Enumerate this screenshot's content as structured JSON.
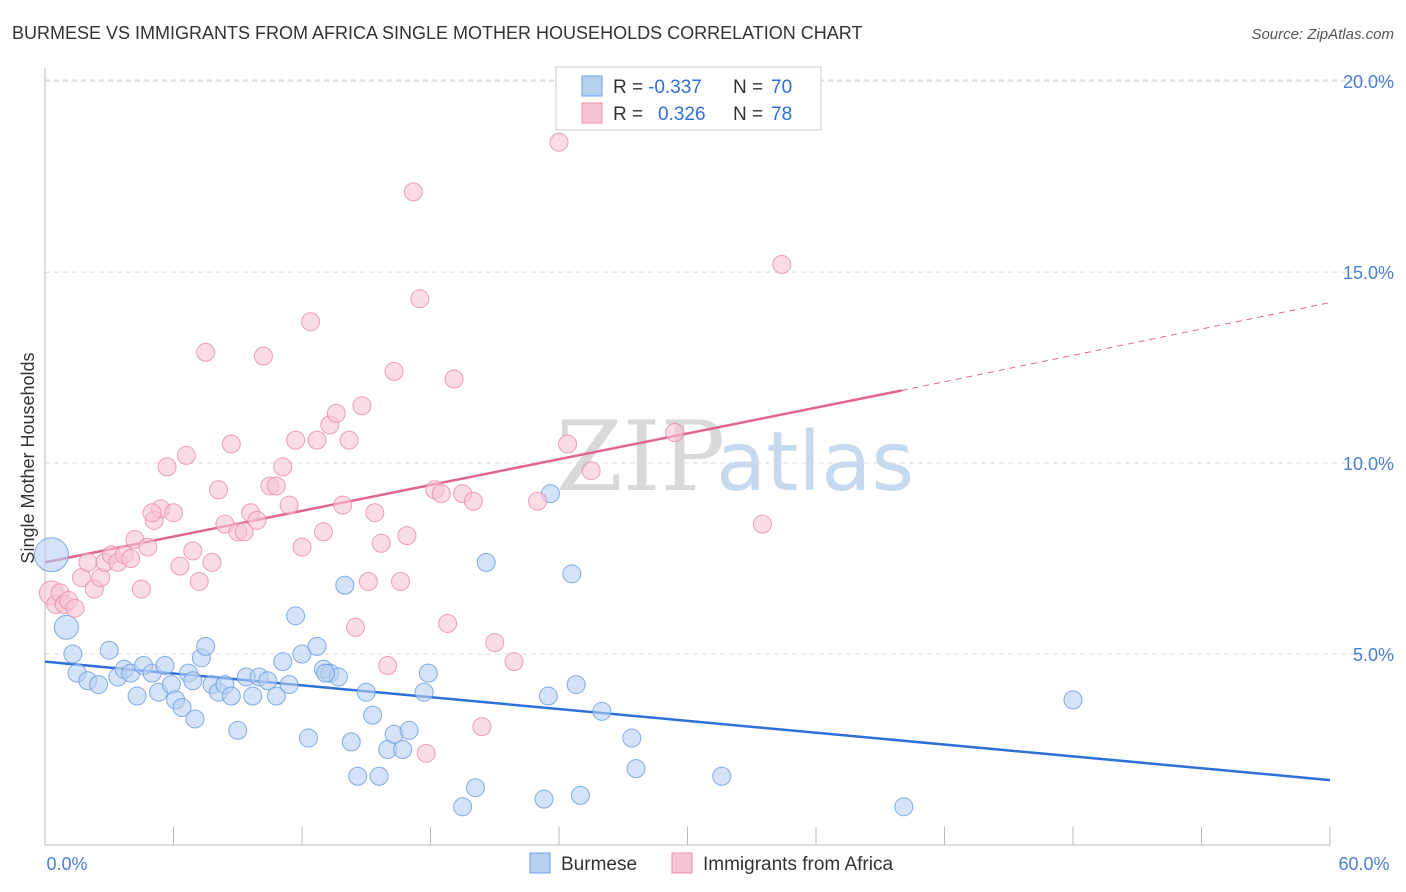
{
  "title": "BURMESE VS IMMIGRANTS FROM AFRICA SINGLE MOTHER HOUSEHOLDS CORRELATION CHART",
  "source": "Source: ZipAtlas.com",
  "watermark": {
    "zip": "ZIP",
    "atlas": "atlas"
  },
  "colors": {
    "burmese": "#6f9fe0",
    "burmese_fill": "#b7d0f2",
    "burmese_line": "#2f6fd6",
    "africa": "#ec8fab",
    "africa_fill": "#f6c5d3",
    "africa_line": "#e0668f",
    "grid": "#dcdcdc",
    "axis_text": "#4a7fd6"
  },
  "legend": {
    "rows": [
      {
        "r_label": "R =",
        "r_value": "-0.337",
        "n_label": "N =",
        "n_value": "70"
      },
      {
        "r_label": "R =",
        "r_value": "0.326",
        "n_label": "N =",
        "n_value": "78"
      }
    ]
  },
  "chart_data": {
    "type": "scatter",
    "title": "BURMESE VS IMMIGRANTS FROM AFRICA SINGLE MOTHER HOUSEHOLDS CORRELATION CHART",
    "xlabel": "",
    "ylabel": "Single Mother Households",
    "xlim": [
      0,
      60
    ],
    "ylim": [
      0,
      20.5
    ],
    "x_tick_labels": [
      "0.0%",
      "60.0%"
    ],
    "y_ticks": [
      5,
      10,
      15,
      20
    ],
    "y_tick_labels": [
      "5.0%",
      "10.0%",
      "15.0%",
      "20.0%"
    ],
    "grid": true,
    "series": [
      {
        "name": "Burmese",
        "r": -0.337,
        "n": 70,
        "trend": {
          "x": [
            0,
            60
          ],
          "y": [
            4.8,
            1.7
          ],
          "dashed_from": null
        },
        "points": [
          [
            0.3,
            7.6
          ],
          [
            1.0,
            5.7
          ],
          [
            1.3,
            5.0
          ],
          [
            1.5,
            4.5
          ],
          [
            2.0,
            4.3
          ],
          [
            2.5,
            4.2
          ],
          [
            3.0,
            5.1
          ],
          [
            3.4,
            4.4
          ],
          [
            3.7,
            4.6
          ],
          [
            4.0,
            4.5
          ],
          [
            4.3,
            3.9
          ],
          [
            4.6,
            4.7
          ],
          [
            5.0,
            4.5
          ],
          [
            5.3,
            4.0
          ],
          [
            5.6,
            4.7
          ],
          [
            5.9,
            4.2
          ],
          [
            6.1,
            3.8
          ],
          [
            6.4,
            3.6
          ],
          [
            6.7,
            4.5
          ],
          [
            7.0,
            3.3
          ],
          [
            7.3,
            4.9
          ],
          [
            7.5,
            5.2
          ],
          [
            7.8,
            4.2
          ],
          [
            8.1,
            4.0
          ],
          [
            8.4,
            4.2
          ],
          [
            8.7,
            3.9
          ],
          [
            9.0,
            3.0
          ],
          [
            9.4,
            4.4
          ],
          [
            9.7,
            3.9
          ],
          [
            10.0,
            4.4
          ],
          [
            10.4,
            4.3
          ],
          [
            10.8,
            3.9
          ],
          [
            11.1,
            4.8
          ],
          [
            11.4,
            4.2
          ],
          [
            11.7,
            6.0
          ],
          [
            12.0,
            5.0
          ],
          [
            12.3,
            2.8
          ],
          [
            12.7,
            5.2
          ],
          [
            13.0,
            4.6
          ],
          [
            13.3,
            4.5
          ],
          [
            13.7,
            4.4
          ],
          [
            14.0,
            6.8
          ],
          [
            14.3,
            2.7
          ],
          [
            14.6,
            1.8
          ],
          [
            15.0,
            4.0
          ],
          [
            15.3,
            3.4
          ],
          [
            15.6,
            1.8
          ],
          [
            16.0,
            2.5
          ],
          [
            16.3,
            2.9
          ],
          [
            16.7,
            2.5
          ],
          [
            17.0,
            3.0
          ],
          [
            17.7,
            4.0
          ],
          [
            17.9,
            4.5
          ],
          [
            19.5,
            1.0
          ],
          [
            20.1,
            1.5
          ],
          [
            20.6,
            7.4
          ],
          [
            23.3,
            1.2
          ],
          [
            23.5,
            3.9
          ],
          [
            23.6,
            9.2
          ],
          [
            24.6,
            7.1
          ],
          [
            24.8,
            4.2
          ],
          [
            26.0,
            3.5
          ],
          [
            27.4,
            2.8
          ],
          [
            27.6,
            2.0
          ],
          [
            31.6,
            1.8
          ],
          [
            40.1,
            1.0
          ],
          [
            48.0,
            3.8
          ],
          [
            25.0,
            1.3
          ],
          [
            13.1,
            4.5
          ],
          [
            6.9,
            4.3
          ]
        ]
      },
      {
        "name": "Immigrants from Africa",
        "r": 0.326,
        "n": 78,
        "trend": {
          "x": [
            0,
            40
          ],
          "y": [
            7.4,
            11.9
          ],
          "dashed_from": 40,
          "dashed_to": [
            60,
            14.2
          ]
        },
        "points": [
          [
            0.3,
            6.6
          ],
          [
            0.5,
            6.3
          ],
          [
            0.7,
            6.6
          ],
          [
            0.9,
            6.3
          ],
          [
            1.1,
            6.4
          ],
          [
            1.4,
            6.2
          ],
          [
            1.7,
            7.0
          ],
          [
            2.0,
            7.4
          ],
          [
            2.3,
            6.7
          ],
          [
            2.6,
            7.0
          ],
          [
            2.8,
            7.4
          ],
          [
            3.1,
            7.6
          ],
          [
            3.4,
            7.4
          ],
          [
            3.7,
            7.6
          ],
          [
            4.0,
            7.5
          ],
          [
            4.2,
            8.0
          ],
          [
            4.5,
            6.7
          ],
          [
            4.8,
            7.8
          ],
          [
            5.1,
            8.5
          ],
          [
            5.4,
            8.8
          ],
          [
            5.7,
            9.9
          ],
          [
            6.0,
            8.7
          ],
          [
            6.3,
            7.3
          ],
          [
            6.6,
            10.2
          ],
          [
            6.9,
            7.7
          ],
          [
            7.2,
            6.9
          ],
          [
            7.5,
            12.9
          ],
          [
            7.8,
            7.4
          ],
          [
            8.1,
            9.3
          ],
          [
            8.4,
            8.4
          ],
          [
            8.7,
            10.5
          ],
          [
            9.0,
            8.2
          ],
          [
            9.3,
            8.2
          ],
          [
            9.6,
            8.7
          ],
          [
            9.9,
            8.5
          ],
          [
            10.2,
            12.8
          ],
          [
            10.5,
            9.4
          ],
          [
            10.8,
            9.4
          ],
          [
            11.1,
            9.9
          ],
          [
            11.4,
            8.9
          ],
          [
            11.7,
            10.6
          ],
          [
            12.0,
            7.8
          ],
          [
            12.4,
            13.7
          ],
          [
            12.7,
            10.6
          ],
          [
            13.0,
            8.2
          ],
          [
            13.3,
            11.0
          ],
          [
            13.6,
            11.3
          ],
          [
            13.9,
            8.9
          ],
          [
            14.2,
            10.6
          ],
          [
            14.5,
            5.7
          ],
          [
            14.8,
            11.5
          ],
          [
            15.1,
            6.9
          ],
          [
            15.4,
            8.7
          ],
          [
            15.7,
            7.9
          ],
          [
            16.0,
            4.7
          ],
          [
            16.3,
            12.4
          ],
          [
            16.6,
            6.9
          ],
          [
            16.9,
            8.1
          ],
          [
            17.2,
            17.1
          ],
          [
            17.5,
            14.3
          ],
          [
            17.8,
            2.4
          ],
          [
            18.2,
            9.3
          ],
          [
            18.5,
            9.2
          ],
          [
            18.8,
            5.8
          ],
          [
            19.1,
            12.2
          ],
          [
            19.5,
            9.2
          ],
          [
            20.0,
            9.0
          ],
          [
            20.4,
            3.1
          ],
          [
            21.0,
            5.3
          ],
          [
            21.9,
            4.8
          ],
          [
            23.0,
            9.0
          ],
          [
            24.0,
            18.4
          ],
          [
            24.4,
            10.5
          ],
          [
            25.5,
            9.8
          ],
          [
            29.4,
            10.8
          ],
          [
            33.5,
            8.4
          ],
          [
            34.4,
            15.2
          ],
          [
            5.0,
            8.7
          ]
        ]
      }
    ],
    "legend_position": "top-center"
  }
}
